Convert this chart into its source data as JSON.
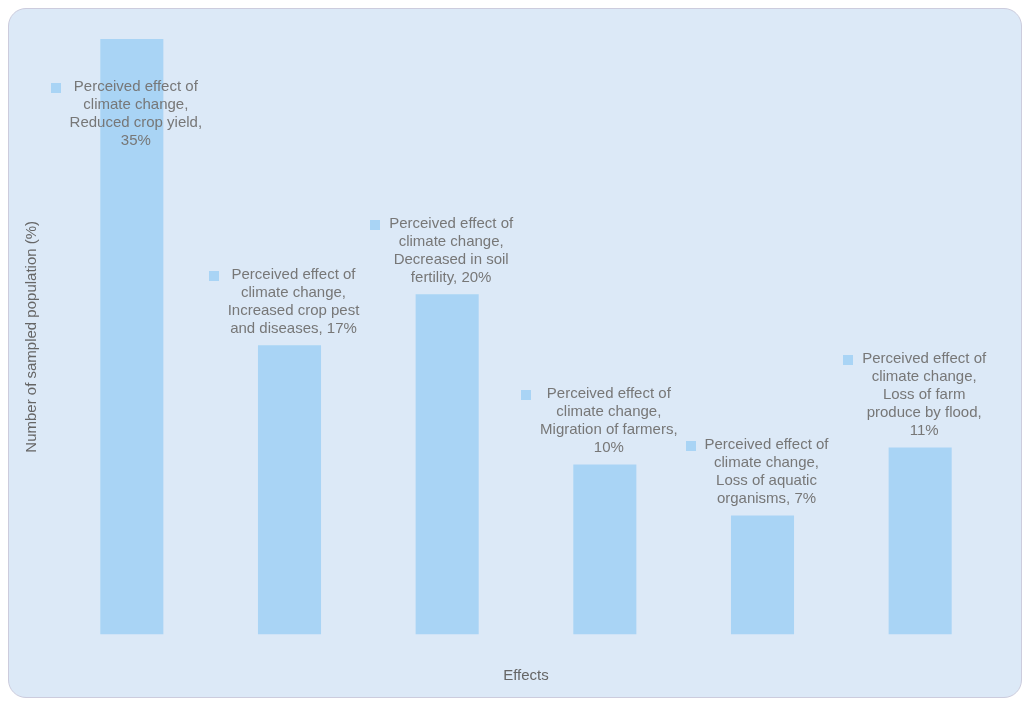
{
  "chart_data": {
    "type": "bar",
    "xlabel": "Effects",
    "ylabel": "Number of sampled population (%)",
    "categories": [
      null,
      null,
      null,
      null,
      null,
      null
    ],
    "values": [
      35,
      17,
      20,
      10,
      7,
      11
    ],
    "color": "#a9d4f5",
    "value_labels": [
      "Perceived effect of climate change, Reduced crop yield, 35%",
      "Perceived effect of climate change, Increased crop pest and diseases, 17%",
      "Perceived effect of climate change, Decreased in soil fertility, 20%",
      "Perceived effect of climate change, Migration of farmers, 10%",
      "Perceived effect of climate change, Loss of aquatic organisms, 7%",
      "Perceived effect of climate change, Loss of farm produce by flood, 11%"
    ],
    "legend": false
  }
}
